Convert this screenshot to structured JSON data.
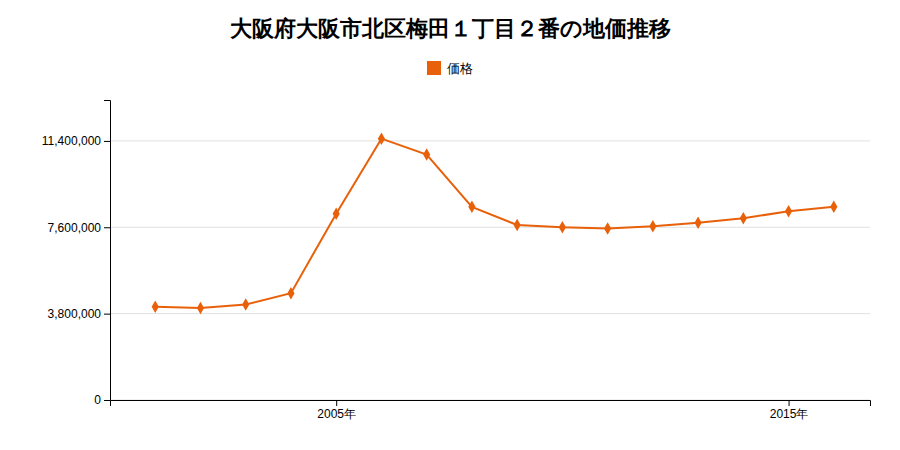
{
  "chart_data": {
    "type": "line",
    "title": "大阪府大阪市北区梅田１丁目２番の地価推移",
    "x": [
      2001,
      2002,
      2003,
      2004,
      2005,
      2006,
      2007,
      2008,
      2009,
      2010,
      2011,
      2012,
      2013,
      2014,
      2015,
      2016
    ],
    "series": [
      {
        "name": "価格",
        "color": "#e8610a",
        "marker": "diamond",
        "values": [
          4100000,
          4050000,
          4200000,
          4700000,
          8200000,
          11500000,
          10800000,
          8500000,
          7700000,
          7600000,
          7550000,
          7650000,
          7800000,
          8000000,
          8300000,
          8500000
        ]
      }
    ],
    "xlim": [
      2000.0,
      2016.8
    ],
    "xticks": [
      {
        "value": 2005,
        "label": "2005年"
      },
      {
        "value": 2015,
        "label": "2015年"
      }
    ],
    "ylim": [
      0,
      13200000
    ],
    "yticks": [
      0,
      {
        "value": 3800000,
        "label": "3,800,000"
      },
      {
        "value": 7600000,
        "label": "7,600,000"
      },
      {
        "value": 11400000,
        "label": "11,400,000"
      }
    ],
    "grid": true,
    "legend": "top"
  }
}
